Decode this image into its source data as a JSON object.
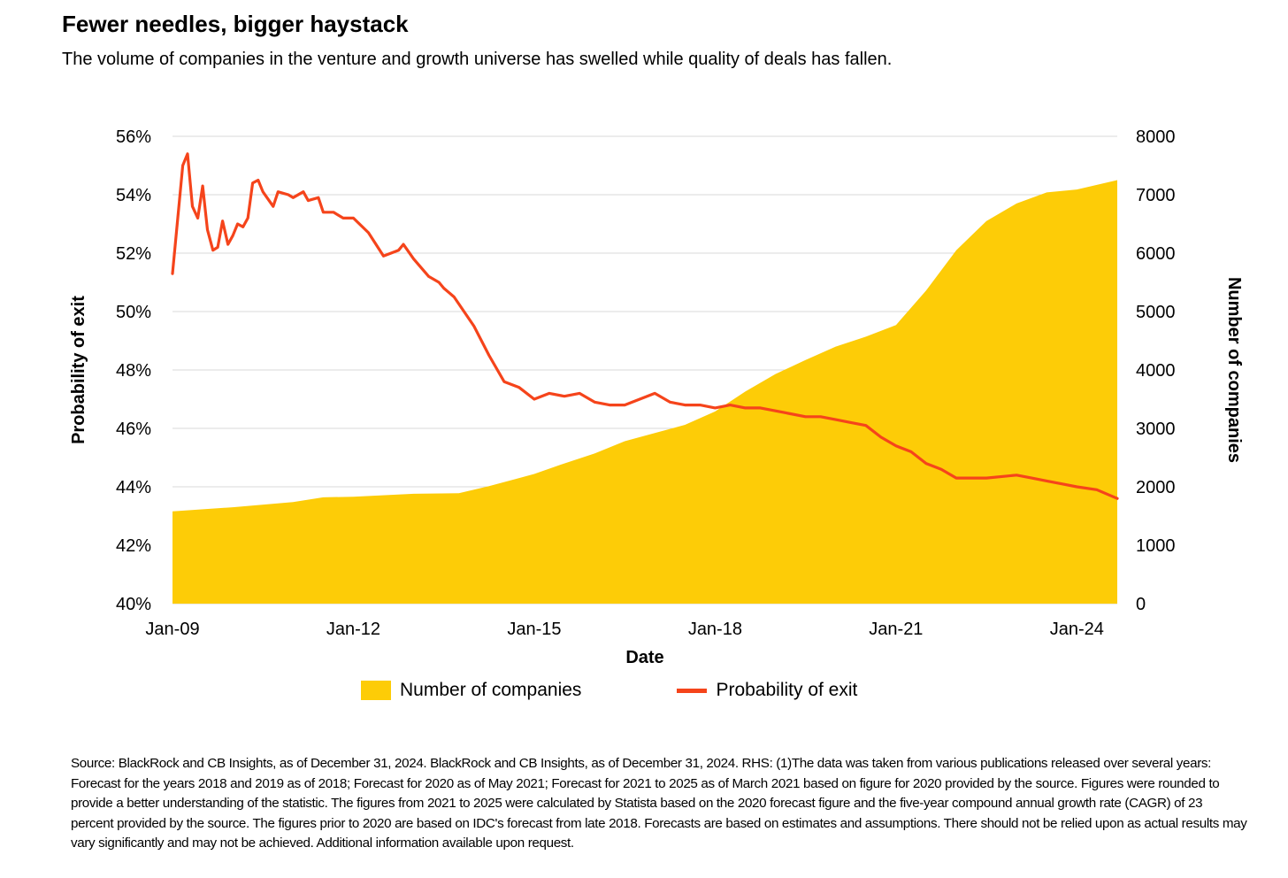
{
  "title": "Fewer needles, bigger haystack",
  "subtitle": "The volume of companies in the venture and growth universe has swelled while quality of deals has fallen.",
  "colors": {
    "area": "#FDCC07",
    "line": "#F5441B",
    "grid": "#d9d9d9"
  },
  "chart_data": {
    "type": "line",
    "xlabel": "Date",
    "ylabel": "Probability of exit",
    "y2label": "Number of companies",
    "x_ticks": [
      "Jan-09",
      "Jan-12",
      "Jan-15",
      "Jan-18",
      "Jan-21",
      "Jan-24"
    ],
    "x_tick_values": [
      2009.0,
      2012.0,
      2015.0,
      2018.0,
      2021.0,
      2024.0
    ],
    "xlim": [
      2009.0,
      2024.67
    ],
    "ylim": [
      40,
      56
    ],
    "y_ticks": [
      "40%",
      "42%",
      "44%",
      "46%",
      "48%",
      "50%",
      "52%",
      "54%",
      "56%"
    ],
    "y_tick_values": [
      40,
      42,
      44,
      46,
      48,
      50,
      52,
      54,
      56
    ],
    "y2lim": [
      0,
      8000
    ],
    "y2_ticks": [
      "0",
      "1000",
      "2000",
      "3000",
      "4000",
      "5000",
      "6000",
      "7000",
      "8000"
    ],
    "y2_tick_values": [
      0,
      1000,
      2000,
      3000,
      4000,
      5000,
      6000,
      7000,
      8000
    ],
    "grid": true,
    "legend_position": "bottom",
    "series": [
      {
        "name": "Number of companies",
        "kind": "area",
        "axis": "right",
        "x": [
          2009.0,
          2010.0,
          2011.0,
          2011.5,
          2012.0,
          2013.0,
          2013.75,
          2014.25,
          2014.75,
          2015.0,
          2015.5,
          2016.0,
          2016.5,
          2017.0,
          2017.5,
          2018.0,
          2018.5,
          2019.0,
          2019.5,
          2020.0,
          2020.5,
          2021.0,
          2021.5,
          2022.0,
          2022.5,
          2023.0,
          2023.5,
          2024.0,
          2024.67
        ],
        "values": [
          1580,
          1650,
          1740,
          1820,
          1830,
          1880,
          1890,
          2010,
          2150,
          2220,
          2400,
          2570,
          2780,
          2920,
          3060,
          3290,
          3630,
          3930,
          4170,
          4400,
          4570,
          4770,
          5360,
          6050,
          6550,
          6850,
          7040,
          7090,
          7250
        ]
      },
      {
        "name": "Probability of exit",
        "kind": "line",
        "axis": "left",
        "x": [
          2009.0,
          2009.17,
          2009.25,
          2009.33,
          2009.42,
          2009.5,
          2009.58,
          2009.67,
          2009.75,
          2009.83,
          2009.92,
          2010.0,
          2010.08,
          2010.17,
          2010.25,
          2010.33,
          2010.42,
          2010.5,
          2010.67,
          2010.75,
          2010.92,
          2011.0,
          2011.17,
          2011.25,
          2011.42,
          2011.5,
          2011.67,
          2011.83,
          2012.0,
          2012.25,
          2012.5,
          2012.75,
          2012.83,
          2013.0,
          2013.25,
          2013.42,
          2013.5,
          2013.67,
          2014.0,
          2014.25,
          2014.5,
          2014.75,
          2015.0,
          2015.25,
          2015.5,
          2015.75,
          2016.0,
          2016.25,
          2016.5,
          2016.75,
          2017.0,
          2017.25,
          2017.5,
          2017.75,
          2018.0,
          2018.25,
          2018.5,
          2018.75,
          2019.0,
          2019.25,
          2019.5,
          2019.75,
          2020.0,
          2020.25,
          2020.5,
          2020.75,
          2021.0,
          2021.25,
          2021.5,
          2021.75,
          2022.0,
          2022.5,
          2023.0,
          2023.25,
          2023.5,
          2023.75,
          2024.0,
          2024.33,
          2024.67
        ],
        "values": [
          51.3,
          55.0,
          55.4,
          53.6,
          53.2,
          54.3,
          52.8,
          52.1,
          52.2,
          53.1,
          52.3,
          52.6,
          53.0,
          52.9,
          53.2,
          54.4,
          54.5,
          54.1,
          53.6,
          54.1,
          54.0,
          53.9,
          54.1,
          53.8,
          53.9,
          53.4,
          53.4,
          53.2,
          53.2,
          52.7,
          51.9,
          52.1,
          52.3,
          51.8,
          51.2,
          51.0,
          50.8,
          50.5,
          49.5,
          48.5,
          47.6,
          47.4,
          47.0,
          47.2,
          47.1,
          47.2,
          46.9,
          46.8,
          46.8,
          47.0,
          47.2,
          46.9,
          46.8,
          46.8,
          46.7,
          46.8,
          46.7,
          46.7,
          46.6,
          46.5,
          46.4,
          46.4,
          46.3,
          46.2,
          46.1,
          45.7,
          45.4,
          45.2,
          44.8,
          44.6,
          44.3,
          44.3,
          44.4,
          44.3,
          44.2,
          44.1,
          44.0,
          43.9,
          43.6
        ]
      }
    ]
  },
  "source_text": "Source: BlackRock and CB Insights, as of December 31, 2024. BlackRock and CB Insights, as of December 31, 2024. RHS: (1)The data was taken from various publications released over several years: Forecast for the years 2018 and 2019 as of 2018; Forecast for 2020 as of May 2021; Forecast for 2021 to 2025 as of March 2021 based on figure for 2020 provided by the source. Figures were rounded to provide a better understanding of the statistic. The figures from 2021 to 2025 were calculated by Statista based on the 2020 forecast figure and the five-year compound annual growth rate (CAGR) of 23 percent provided by the source. The figures prior to 2020 are based on IDC's forecast from late 2018. Forecasts are based on estimates and assumptions. There should not be relied upon as actual results may vary significantly and may not be achieved. Additional information available upon request."
}
